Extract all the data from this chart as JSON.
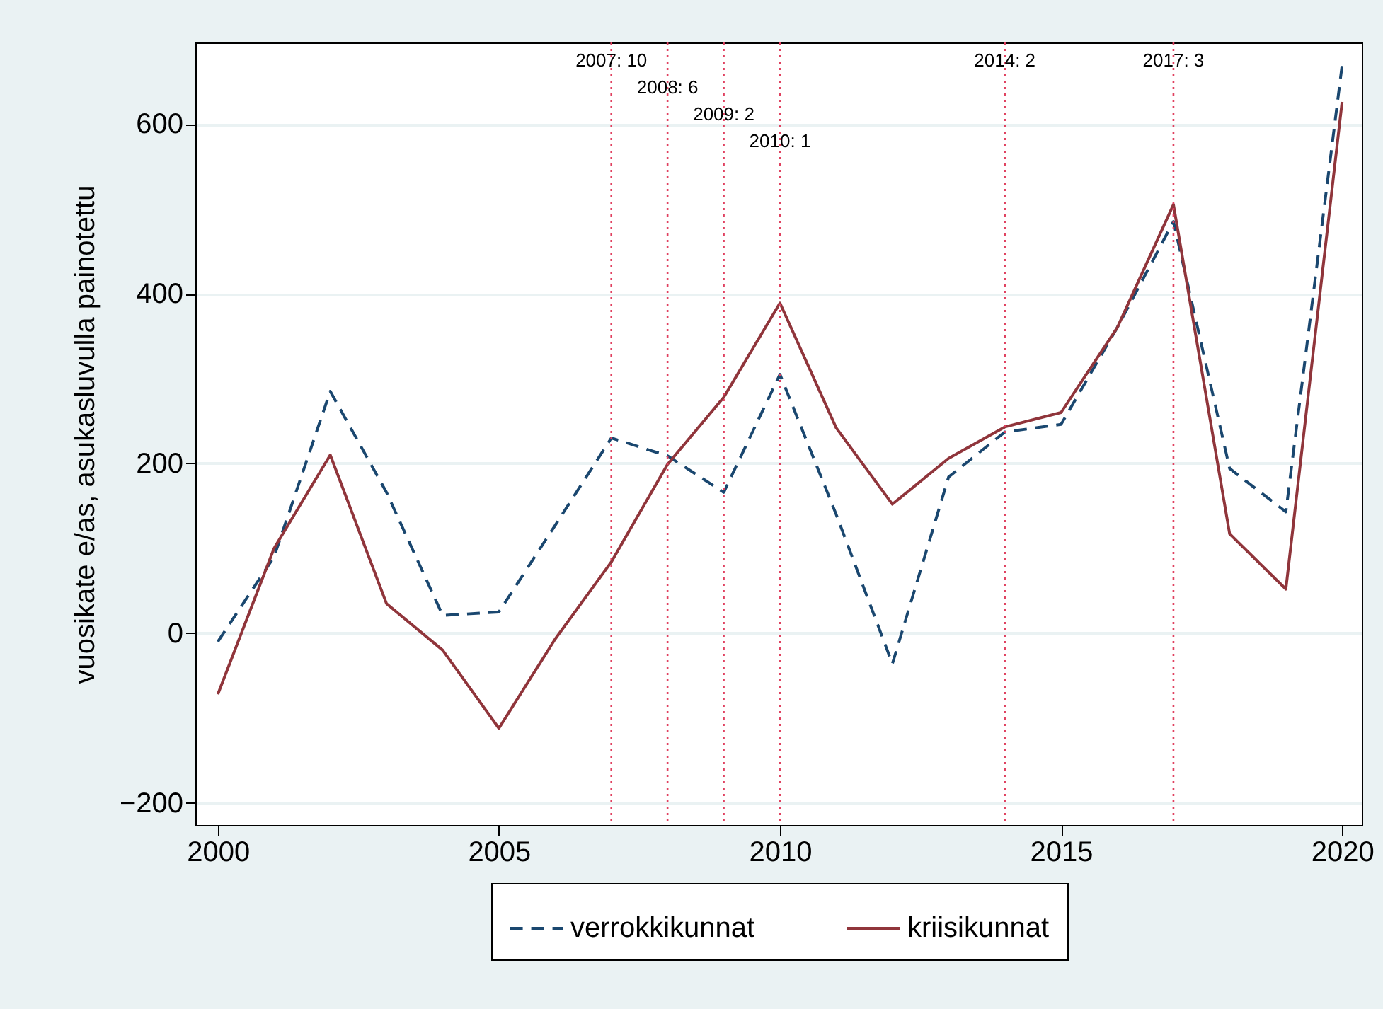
{
  "chart_data": {
    "type": "line",
    "ylabel": "vuosikate e/as, asukasluvulla painotettu",
    "x": [
      2000,
      2001,
      2002,
      2003,
      2004,
      2005,
      2006,
      2007,
      2008,
      2009,
      2010,
      2011,
      2012,
      2013,
      2014,
      2015,
      2016,
      2017,
      2018,
      2019,
      2020
    ],
    "series": [
      {
        "name": "verrokkikunnat",
        "color": "#1a476f",
        "line_style": "dashed",
        "values": [
          -10,
          90,
          285,
          166,
          21,
          25,
          127,
          230,
          209,
          166,
          305,
          140,
          -36,
          184,
          237,
          246,
          360,
          485,
          194,
          143,
          669
        ]
      },
      {
        "name": "kriisikunnat",
        "color": "#90353b",
        "line_style": "solid",
        "values": [
          -72,
          100,
          210,
          35,
          -20,
          -112,
          -7,
          84,
          199,
          278,
          389,
          242,
          152,
          206,
          243,
          260,
          360,
          505,
          117,
          52,
          626
        ]
      }
    ],
    "xlim": [
      1999.6,
      2020.35
    ],
    "xticks": [
      2000,
      2005,
      2010,
      2015,
      2020
    ],
    "ylim": [
      -226,
      696
    ],
    "yticks": [
      -200,
      0,
      200,
      400,
      600
    ],
    "ref_lines": [
      {
        "axis": "x",
        "value": 2007,
        "label": "2007: 10",
        "color": "#e0405f",
        "line_style": "dotted"
      },
      {
        "axis": "x",
        "value": 2008,
        "label": "2008: 6",
        "color": "#e0405f",
        "line_style": "dotted"
      },
      {
        "axis": "x",
        "value": 2009,
        "label": "2009: 2",
        "color": "#e0405f",
        "line_style": "dotted"
      },
      {
        "axis": "x",
        "value": 2010,
        "label": "2010: 1",
        "color": "#e0405f",
        "line_style": "dotted"
      },
      {
        "axis": "x",
        "value": 2014,
        "label": "2014: 2",
        "color": "#e0405f",
        "line_style": "dotted"
      },
      {
        "axis": "x",
        "value": 2017,
        "label": "2017: 3",
        "color": "#e0405f",
        "line_style": "dotted"
      }
    ],
    "grid": "y",
    "legend": "bottom"
  }
}
